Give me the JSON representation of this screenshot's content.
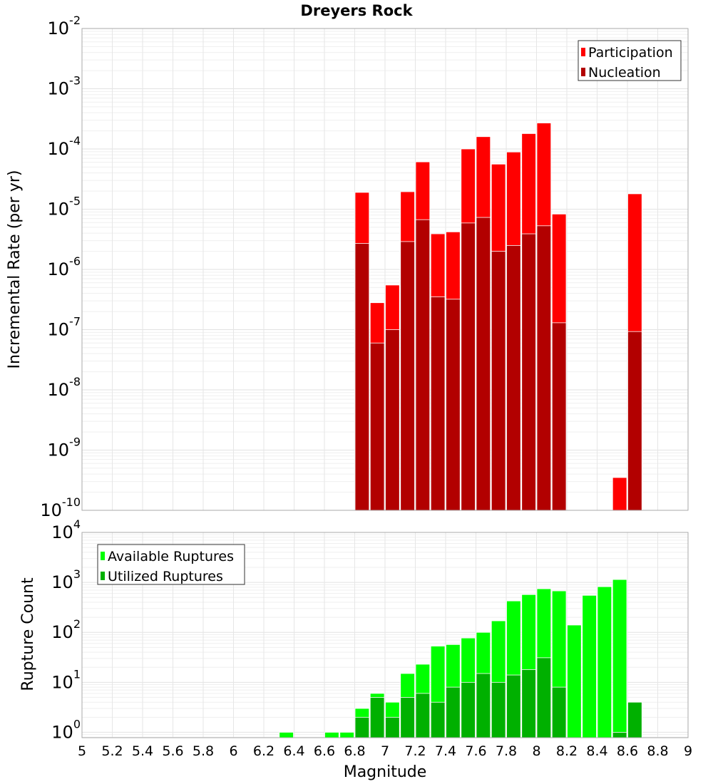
{
  "chart_data": [
    {
      "type": "bar",
      "title": "Dreyers Rock",
      "xlabel": "Magnitude",
      "ylabel": "Incremental Rate (per yr)",
      "yscale": "log",
      "xlim": [
        5,
        9
      ],
      "ylim": [
        1e-10,
        0.01
      ],
      "bin_width": 0.1,
      "legend": "top-right",
      "grid": true,
      "series": [
        {
          "name": "Participation",
          "color": "#ff0000",
          "x": [
            6.85,
            6.95,
            7.05,
            7.15,
            7.25,
            7.35,
            7.45,
            7.55,
            7.65,
            7.75,
            7.85,
            7.95,
            8.05,
            8.15,
            8.55,
            8.65
          ],
          "values": [
            1.9e-05,
            2.8e-07,
            5.5e-07,
            1.95e-05,
            6.1e-05,
            3.9e-06,
            4.2e-06,
            0.0001,
            0.00016,
            5.6e-05,
            8.9e-05,
            0.00018,
            0.00027,
            8.3e-06,
            3.5e-10,
            1.8e-05
          ]
        },
        {
          "name": "Nucleation",
          "color": "#b20000",
          "x": [
            6.85,
            6.95,
            7.05,
            7.15,
            7.25,
            7.35,
            7.45,
            7.55,
            7.65,
            7.75,
            7.85,
            7.95,
            8.05,
            8.15,
            8.65
          ],
          "values": [
            2.7e-06,
            6e-08,
            1e-07,
            2.9e-06,
            6.7e-06,
            3.5e-07,
            3.2e-07,
            5.9e-06,
            7.3e-06,
            2e-06,
            2.5e-06,
            3.9e-06,
            5.3e-06,
            1.3e-07,
            9.3e-08
          ]
        }
      ]
    },
    {
      "type": "bar",
      "title": "",
      "xlabel": "Magnitude",
      "ylabel": "Rupture Count",
      "yscale": "log",
      "xlim": [
        5,
        9
      ],
      "ylim": [
        0.78,
        10000
      ],
      "bin_width": 0.1,
      "legend": "top-left",
      "grid": true,
      "xticks": [
        "5",
        "5.2",
        "5.4",
        "5.6",
        "5.8",
        "6",
        "6.2",
        "6.4",
        "6.6",
        "6.8",
        "7",
        "7.2",
        "7.4",
        "7.6",
        "7.8",
        "8",
        "8.2",
        "8.4",
        "8.6",
        "8.8",
        "9"
      ],
      "series": [
        {
          "name": "Available Ruptures",
          "color": "#00ff00",
          "x": [
            6.35,
            6.65,
            6.75,
            6.85,
            6.95,
            7.05,
            7.15,
            7.25,
            7.35,
            7.45,
            7.55,
            7.65,
            7.75,
            7.85,
            7.95,
            8.05,
            8.15,
            8.25,
            8.35,
            8.45,
            8.55,
            8.65
          ],
          "values": [
            1,
            1,
            1,
            3,
            6,
            4,
            15,
            23,
            53,
            57,
            77,
            100,
            170,
            425,
            570,
            745,
            675,
            140,
            550,
            820,
            1140,
            4
          ]
        },
        {
          "name": "Utilized Ruptures",
          "color": "#00b000",
          "x": [
            6.85,
            6.95,
            7.05,
            7.15,
            7.25,
            7.35,
            7.45,
            7.55,
            7.65,
            7.75,
            7.85,
            7.95,
            8.05,
            8.15,
            8.55,
            8.65
          ],
          "values": [
            2,
            5,
            2,
            5,
            6,
            4,
            8,
            10,
            15,
            10,
            14,
            18,
            31,
            8,
            1,
            4
          ]
        }
      ]
    }
  ]
}
